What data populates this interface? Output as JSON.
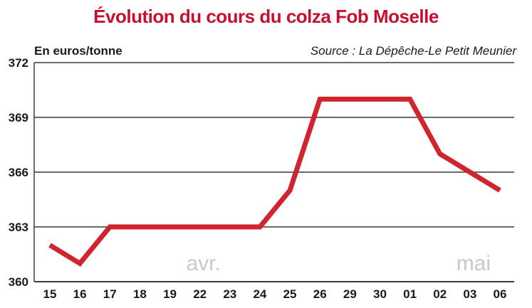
{
  "title": "Évolution du cours du colza Fob Moselle",
  "unit_label": "En euros/tonne",
  "source": "Source : La Dépêche-Le Petit Meunier",
  "colors": {
    "title": "#c8102e",
    "line": "#d0252f",
    "grid": "#3a3a3a",
    "month_label": "#c8c8c8",
    "text": "#1a1a1a"
  },
  "chart_data": {
    "type": "line",
    "categories": [
      "15",
      "16",
      "17",
      "18",
      "19",
      "22",
      "23",
      "24",
      "25",
      "26",
      "29",
      "30",
      "01",
      "02",
      "03",
      "06"
    ],
    "values": [
      362,
      361,
      363,
      363,
      363,
      363,
      363,
      363,
      365,
      370,
      370,
      370,
      370,
      367,
      366,
      365
    ],
    "yticks": [
      360,
      363,
      366,
      369,
      372
    ],
    "ylim": [
      360,
      372
    ],
    "grid": "horizontal",
    "annotations": [
      {
        "text": "avr.",
        "at_category": "22"
      },
      {
        "text": "mai",
        "at_category": "03"
      }
    ]
  }
}
